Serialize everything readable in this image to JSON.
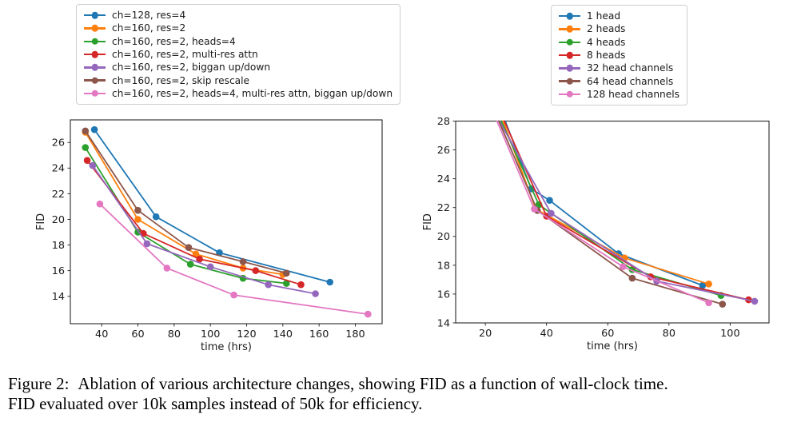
{
  "caption": {
    "label": "Figure 2:",
    "line1": "Ablation of various architecture changes, showing FID as a function of wall-clock time.",
    "line2": "FID evaluated over 10k samples instead of 50k for efficiency."
  },
  "chart_data": [
    {
      "type": "line",
      "title": "",
      "xlabel": "time (hrs)",
      "ylabel": "FID",
      "xlim": [
        22.7,
        194.8
      ],
      "ylim": [
        11.86,
        27.76
      ],
      "xticks": [
        40,
        60,
        80,
        100,
        120,
        140,
        160,
        180
      ],
      "yticks": [
        14,
        16,
        18,
        20,
        22,
        24,
        26
      ],
      "grid": false,
      "legend_position": "above-left",
      "series": [
        {
          "name": "ch=128, res=4",
          "color": "#1f77b4",
          "markers_from": 0,
          "points": [
            [
              36,
              27.0
            ],
            [
              70,
              20.2
            ],
            [
              105,
              17.4
            ],
            [
              166,
              15.1
            ]
          ]
        },
        {
          "name": "ch=160, res=2",
          "color": "#ff7f0e",
          "markers_from": 0,
          "points": [
            [
              31,
              26.8
            ],
            [
              60,
              20.0
            ],
            [
              92,
              17.3
            ],
            [
              118,
              16.2
            ],
            [
              140,
              15.7
            ]
          ]
        },
        {
          "name": "ch=160, res=2, heads=4",
          "color": "#2ca02c",
          "markers_from": 0,
          "points": [
            [
              31,
              25.6
            ],
            [
              60,
              19.0
            ],
            [
              89,
              16.5
            ],
            [
              118,
              15.4
            ],
            [
              142,
              15.0
            ]
          ]
        },
        {
          "name": "ch=160, res=2, multi-res attn",
          "color": "#d62728",
          "markers_from": 0,
          "points": [
            [
              32,
              24.6
            ],
            [
              63,
              18.9
            ],
            [
              94,
              16.9
            ],
            [
              125,
              16.0
            ],
            [
              150,
              14.9
            ]
          ]
        },
        {
          "name": "ch=160, res=2, biggan up/down",
          "color": "#9467bd",
          "markers_from": 0,
          "points": [
            [
              35,
              24.2
            ],
            [
              65,
              18.1
            ],
            [
              100,
              16.3
            ],
            [
              132,
              14.9
            ],
            [
              158,
              14.2
            ]
          ]
        },
        {
          "name": "ch=160, res=2, skip rescale",
          "color": "#8c564b",
          "markers_from": 0,
          "points": [
            [
              31,
              26.9
            ],
            [
              60,
              20.7
            ],
            [
              88,
              17.8
            ],
            [
              118,
              16.7
            ],
            [
              142,
              15.8
            ]
          ]
        },
        {
          "name": "ch=160, res=2, heads=4, multi-res attn, biggan up/down",
          "color": "#e377c2",
          "markers_from": 0,
          "points": [
            [
              39,
              21.2
            ],
            [
              76,
              16.2
            ],
            [
              113,
              14.1
            ],
            [
              187,
              12.6
            ]
          ]
        }
      ]
    },
    {
      "type": "line",
      "title": "",
      "xlabel": "time (hrs)",
      "ylabel": "FID",
      "xlim": [
        10.3,
        112.7
      ],
      "ylim": [
        14,
        28
      ],
      "xticks": [
        20,
        40,
        60,
        80,
        100
      ],
      "yticks": [
        14,
        16,
        18,
        20,
        22,
        24,
        26,
        28
      ],
      "grid": false,
      "legend_position": "above-left",
      "series": [
        {
          "name": "1 head",
          "color": "#1f77b4",
          "markers_from": 1,
          "points": [
            [
              26.5,
              28
            ],
            [
              35,
              23.3
            ],
            [
              41,
              22.5
            ],
            [
              63.5,
              18.8
            ],
            [
              91,
              16.6
            ]
          ]
        },
        {
          "name": "2 heads",
          "color": "#ff7f0e",
          "markers_from": 1,
          "points": [
            [
              25.8,
              28
            ],
            [
              36.5,
              21.9
            ],
            [
              65.5,
              18.5
            ],
            [
              93,
              16.7
            ]
          ]
        },
        {
          "name": "4 heads",
          "color": "#2ca02c",
          "markers_from": 1,
          "points": [
            [
              25.2,
              28
            ],
            [
              37.5,
              22.2
            ],
            [
              68,
              17.7
            ],
            [
              97,
              15.9
            ]
          ]
        },
        {
          "name": "8 heads",
          "color": "#d62728",
          "markers_from": 1,
          "points": [
            [
              26.2,
              28
            ],
            [
              40,
              21.4
            ],
            [
              74,
              17.2
            ],
            [
              106,
              15.6
            ]
          ]
        },
        {
          "name": "32 head channels",
          "color": "#9467bd",
          "markers_from": 1,
          "points": [
            [
              24.6,
              28
            ],
            [
              41.5,
              21.6
            ],
            [
              76,
              16.9
            ],
            [
              108,
              15.5
            ]
          ]
        },
        {
          "name": "64 head channels",
          "color": "#8c564b",
          "markers_from": 1,
          "points": [
            [
              24.4,
              28
            ],
            [
              37,
              21.8
            ],
            [
              68,
              17.1
            ],
            [
              97.5,
              15.3
            ]
          ]
        },
        {
          "name": "128 head channels",
          "color": "#e377c2",
          "markers_from": 1,
          "points": [
            [
              23.8,
              28
            ],
            [
              36,
              21.9
            ],
            [
              65,
              17.9
            ],
            [
              93,
              15.4
            ]
          ]
        }
      ]
    }
  ]
}
